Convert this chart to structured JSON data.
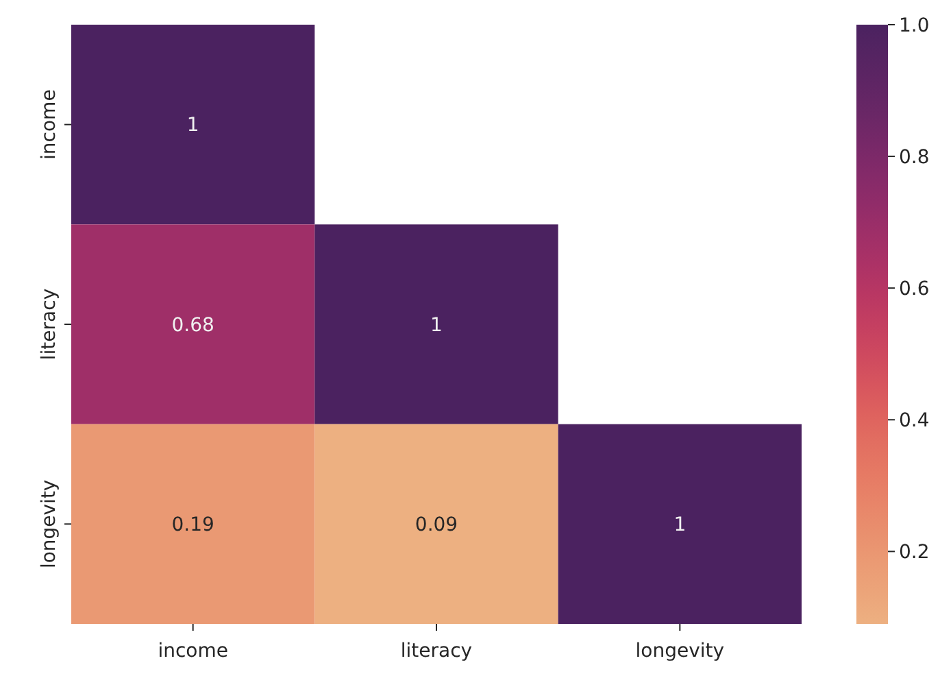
{
  "chart_data": {
    "type": "heatmap",
    "categories": [
      "income",
      "literacy",
      "longevity"
    ],
    "y_categories": [
      "income",
      "literacy",
      "longevity"
    ],
    "cells": [
      [
        1,
        null,
        null
      ],
      [
        0.68,
        1,
        null
      ],
      [
        0.19,
        0.09,
        1
      ]
    ],
    "clim": [
      0.09,
      1.0
    ],
    "cticks": [
      {
        "value": 0.2,
        "label": "0.2"
      },
      {
        "value": 0.4,
        "label": "0.4"
      },
      {
        "value": 0.6,
        "label": "0.6"
      },
      {
        "value": 0.8,
        "label": "0.8"
      },
      {
        "value": 1,
        "label": "1.0"
      }
    ],
    "data_labels": true
  }
}
